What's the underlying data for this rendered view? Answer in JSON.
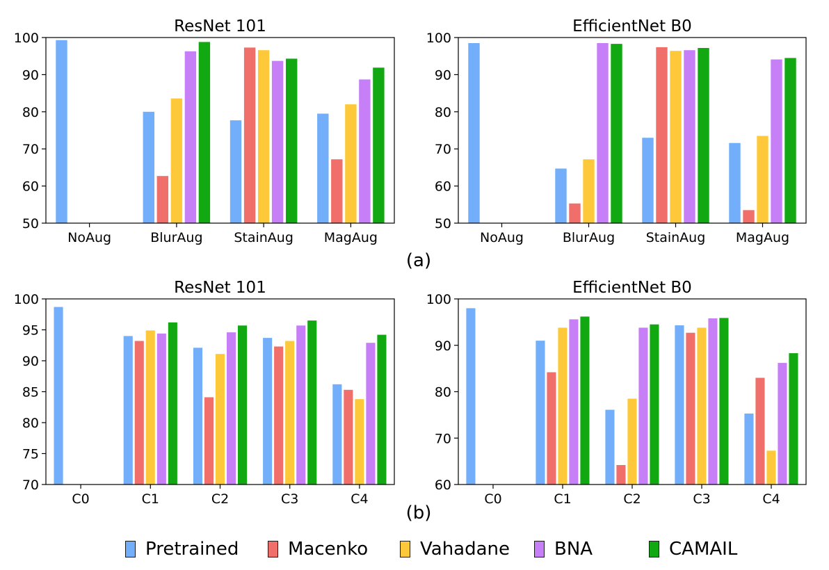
{
  "colors": {
    "Pretrained": "#72aef9",
    "Macenko": "#f06f6b",
    "Vahadane": "#fdc93a",
    "BNA": "#c67ff7",
    "CAMAIL": "#11a811"
  },
  "row_labels": {
    "a": "(a)",
    "b": "(b)"
  },
  "legend": [
    "Pretrained",
    "Macenko",
    "Vahadane",
    "BNA",
    "CAMAIL"
  ],
  "chart_data": [
    {
      "type": "bar",
      "title": "ResNet 101",
      "categories": [
        "NoAug",
        "BlurAug",
        "StainAug",
        "MagAug"
      ],
      "ylim": [
        50,
        100
      ],
      "yticks": [
        50,
        60,
        70,
        80,
        90,
        100
      ],
      "series": [
        {
          "name": "Pretrained",
          "values": [
            99.3,
            80.0,
            77.7,
            79.5
          ]
        },
        {
          "name": "Macenko",
          "values": [
            null,
            62.7,
            97.3,
            67.2
          ]
        },
        {
          "name": "Vahadane",
          "values": [
            null,
            83.6,
            96.6,
            82.0
          ]
        },
        {
          "name": "BNA",
          "values": [
            null,
            96.3,
            93.7,
            88.7
          ]
        },
        {
          "name": "CAMAIL",
          "values": [
            null,
            98.8,
            94.3,
            91.9
          ]
        }
      ]
    },
    {
      "type": "bar",
      "title": "EfficientNet B0",
      "categories": [
        "NoAug",
        "BlurAug",
        "StainAug",
        "MagAug"
      ],
      "ylim": [
        50,
        100
      ],
      "yticks": [
        50,
        60,
        70,
        80,
        90,
        100
      ],
      "series": [
        {
          "name": "Pretrained",
          "values": [
            98.5,
            64.7,
            73.0,
            71.6
          ]
        },
        {
          "name": "Macenko",
          "values": [
            null,
            55.3,
            97.4,
            53.5
          ]
        },
        {
          "name": "Vahadane",
          "values": [
            null,
            67.2,
            96.4,
            73.5
          ]
        },
        {
          "name": "BNA",
          "values": [
            null,
            98.5,
            96.6,
            94.1
          ]
        },
        {
          "name": "CAMAIL",
          "values": [
            null,
            98.3,
            97.2,
            94.5
          ]
        }
      ]
    },
    {
      "type": "bar",
      "title": "ResNet 101",
      "categories": [
        "C0",
        "C1",
        "C2",
        "C3",
        "C4"
      ],
      "ylim": [
        70,
        100
      ],
      "yticks": [
        70,
        75,
        80,
        85,
        90,
        95,
        100
      ],
      "series": [
        {
          "name": "Pretrained",
          "values": [
            98.7,
            94.0,
            92.1,
            93.7,
            86.2
          ]
        },
        {
          "name": "Macenko",
          "values": [
            null,
            93.2,
            84.1,
            92.3,
            85.3
          ]
        },
        {
          "name": "Vahadane",
          "values": [
            null,
            94.9,
            91.1,
            93.2,
            83.8
          ]
        },
        {
          "name": "BNA",
          "values": [
            null,
            94.4,
            94.6,
            95.7,
            92.9
          ]
        },
        {
          "name": "CAMAIL",
          "values": [
            null,
            96.2,
            95.7,
            96.5,
            94.2
          ]
        }
      ]
    },
    {
      "type": "bar",
      "title": "EfficientNet B0",
      "categories": [
        "C0",
        "C1",
        "C2",
        "C3",
        "C4"
      ],
      "ylim": [
        60,
        100
      ],
      "yticks": [
        60,
        70,
        80,
        90,
        100
      ],
      "series": [
        {
          "name": "Pretrained",
          "values": [
            98.0,
            91.0,
            76.1,
            94.3,
            75.3
          ]
        },
        {
          "name": "Macenko",
          "values": [
            null,
            84.2,
            64.2,
            92.7,
            83.0
          ]
        },
        {
          "name": "Vahadane",
          "values": [
            null,
            93.8,
            78.5,
            93.8,
            67.3
          ]
        },
        {
          "name": "BNA",
          "values": [
            null,
            95.6,
            93.8,
            95.8,
            86.2
          ]
        },
        {
          "name": "CAMAIL",
          "values": [
            null,
            96.2,
            94.5,
            95.9,
            88.3
          ]
        }
      ]
    }
  ]
}
